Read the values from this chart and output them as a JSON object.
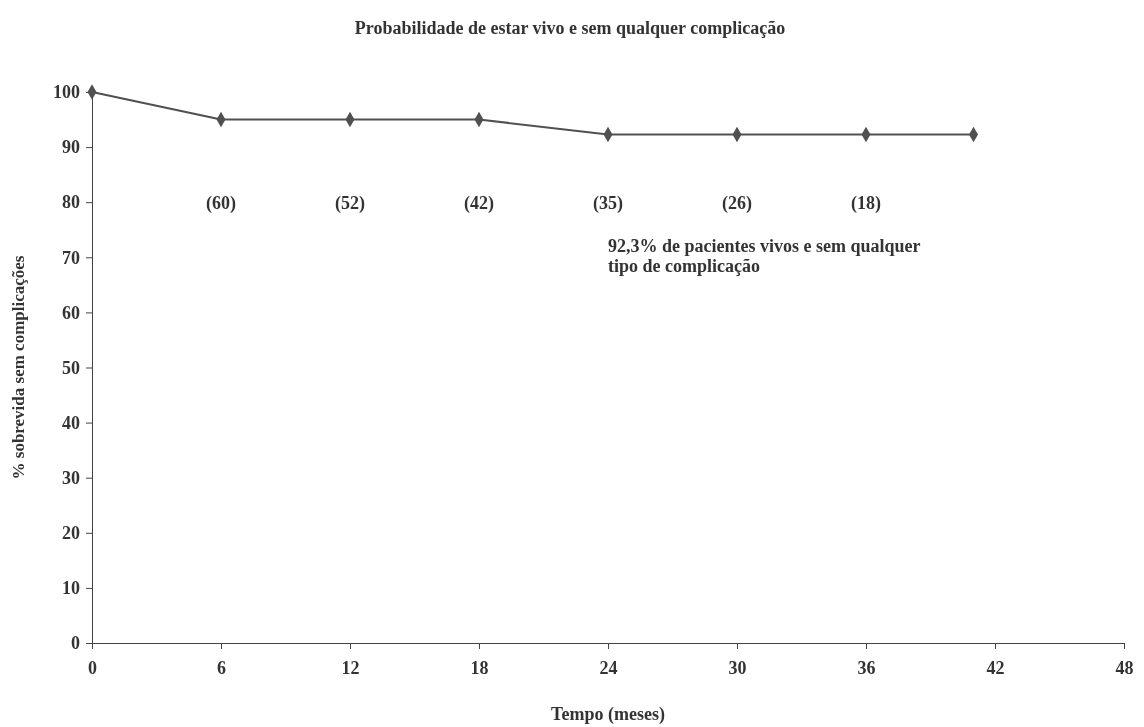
{
  "chart_data": {
    "type": "line",
    "title": "Probabilidade de estar vivo e sem qualquer complicação",
    "xlabel": "Tempo (meses)",
    "ylabel": "% sobrevida sem complicações",
    "x": [
      0,
      6,
      12,
      18,
      24,
      30,
      36,
      41
    ],
    "series": [
      {
        "color": "#505050",
        "values": [
          100,
          95,
          95,
          95,
          92.3,
          92.3,
          92.3,
          92.3
        ]
      }
    ],
    "xlim": [
      0,
      48
    ],
    "xticks": [
      0,
      6,
      12,
      18,
      24,
      30,
      36,
      42,
      48
    ],
    "ylim": [
      0,
      100
    ],
    "yticks": [
      0,
      10,
      20,
      30,
      40,
      50,
      60,
      70,
      80,
      90,
      100
    ],
    "marker": "diamond",
    "line_style": "solid",
    "grid": false,
    "annotations": [
      "(60)",
      "(52)",
      "(42)",
      "(35)",
      "(26)",
      "(18)",
      "92,3% de pacientes vivos e sem qualquer\ntipo de complicação"
    ]
  }
}
